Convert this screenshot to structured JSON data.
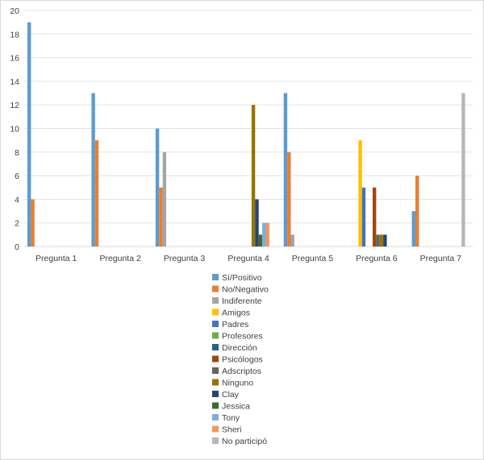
{
  "chart_data": {
    "type": "bar",
    "categories": [
      "Pregunta 1",
      "Pregunta 2",
      "Pregunta 3",
      "Pregunta 4",
      "Pregunta 5",
      "Pregunta 6",
      "Pregunta 7"
    ],
    "ylim": [
      0,
      20
    ],
    "yticks": [
      0,
      2,
      4,
      6,
      8,
      10,
      12,
      14,
      16,
      18,
      20
    ],
    "grid": true,
    "legend_position": "bottom",
    "series": [
      {
        "name": "Sí/Positivo",
        "color": "#5b9bd5",
        "values": [
          19,
          13,
          10,
          0,
          13,
          0,
          3
        ]
      },
      {
        "name": "No/Negativo",
        "color": "#ed7d31",
        "values": [
          4,
          9,
          5,
          0,
          8,
          0,
          6
        ]
      },
      {
        "name": "Indiferente",
        "color": "#a5a5a5",
        "values": [
          0,
          0,
          8,
          0,
          1,
          0,
          0
        ]
      },
      {
        "name": "Amigos",
        "color": "#ffc000",
        "values": [
          0,
          0,
          0,
          0,
          0,
          9,
          0
        ]
      },
      {
        "name": "Padres",
        "color": "#4472c4",
        "values": [
          0,
          0,
          0,
          0,
          0,
          5,
          0
        ]
      },
      {
        "name": "Profesores",
        "color": "#70ad47",
        "values": [
          0,
          0,
          0,
          0,
          0,
          0,
          0
        ]
      },
      {
        "name": "Dirección",
        "color": "#255e91",
        "values": [
          0,
          0,
          0,
          0,
          0,
          0,
          0
        ]
      },
      {
        "name": "Psicólogos",
        "color": "#9e480e",
        "values": [
          0,
          0,
          0,
          0,
          0,
          5,
          0
        ]
      },
      {
        "name": "Adscriptos",
        "color": "#636363",
        "values": [
          0,
          0,
          0,
          0,
          0,
          1,
          0
        ]
      },
      {
        "name": "Ninguno",
        "color": "#997300",
        "values": [
          0,
          0,
          0,
          12,
          0,
          1,
          0
        ]
      },
      {
        "name": "Clay",
        "color": "#264478",
        "values": [
          0,
          0,
          0,
          4,
          0,
          1,
          0
        ]
      },
      {
        "name": "Jessica",
        "color": "#43682b",
        "values": [
          0,
          0,
          0,
          1,
          0,
          0,
          0
        ]
      },
      {
        "name": "Tony",
        "color": "#7cafdd",
        "values": [
          0,
          0,
          0,
          2,
          0,
          0,
          0
        ]
      },
      {
        "name": "Sheri",
        "color": "#f1975a",
        "values": [
          0,
          0,
          0,
          2,
          0,
          0,
          0
        ]
      },
      {
        "name": "No participó",
        "color": "#b7b7b7",
        "values": [
          0,
          0,
          0,
          0,
          0,
          0,
          13
        ]
      }
    ]
  }
}
